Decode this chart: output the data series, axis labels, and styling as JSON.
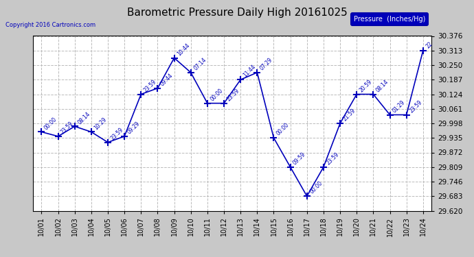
{
  "title": "Barometric Pressure Daily High 20161025",
  "copyright": "Copyright 2016 Cartronics.com",
  "legend_label": "Pressure  (Inches/Hg)",
  "background_color": "#c8c8c8",
  "plot_bg_color": "#ffffff",
  "line_color": "#0000bb",
  "text_color": "#0000bb",
  "grid_color": "#bbbbbb",
  "xlabel_color": "#000000",
  "ylabel_color": "#000000",
  "dates": [
    "10/01",
    "10/02",
    "10/03",
    "10/04",
    "10/05",
    "10/06",
    "10/07",
    "10/08",
    "10/09",
    "10/10",
    "10/11",
    "10/12",
    "10/13",
    "10/14",
    "10/15",
    "10/16",
    "10/17",
    "10/18",
    "10/19",
    "10/20",
    "10/21",
    "10/22",
    "10/23",
    "10/24"
  ],
  "values": [
    29.961,
    29.942,
    29.985,
    29.961,
    29.916,
    29.942,
    30.124,
    30.15,
    30.281,
    30.218,
    30.085,
    30.085,
    30.187,
    30.218,
    29.935,
    29.809,
    29.683,
    29.809,
    29.998,
    30.124,
    30.124,
    30.035,
    30.035,
    30.313
  ],
  "time_labels": [
    "00:00",
    "23:59",
    "08:14",
    "10:29",
    "23:59",
    "09:29",
    "23:59",
    "09:44",
    "10:44",
    "07:14",
    "00:00",
    "23:59",
    "11:44",
    "07:29",
    "00:00",
    "09:59",
    "00:00",
    "23:59",
    "21:59",
    "20:59",
    "08:14",
    "01:29",
    "23:59",
    "22"
  ],
  "ylim_min": 29.62,
  "ylim_max": 30.376,
  "ytick_values": [
    29.62,
    29.683,
    29.746,
    29.809,
    29.872,
    29.935,
    29.998,
    30.061,
    30.124,
    30.187,
    30.25,
    30.313,
    30.376
  ],
  "ytick_labels": [
    "29.620",
    "29.683",
    "29.746",
    "29.809",
    "29.872",
    "29.935",
    "29.998",
    "30.061",
    "30.124",
    "30.187",
    "30.250",
    "30.313",
    "30.376"
  ]
}
